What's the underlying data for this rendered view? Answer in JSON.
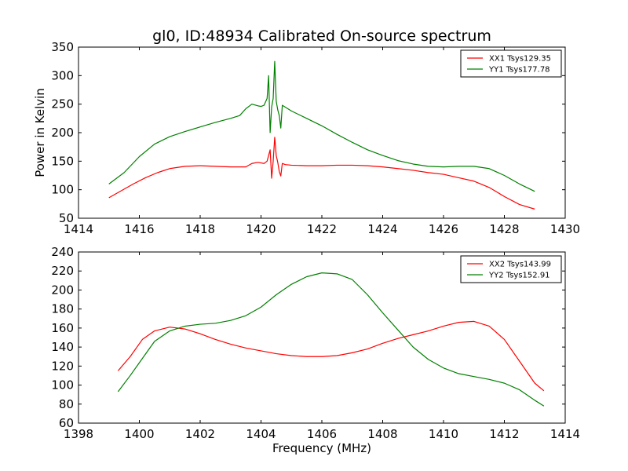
{
  "chart_data": [
    {
      "type": "line",
      "title": "gl0, ID:48934 Calibrated On-source spectrum",
      "xlabel": "",
      "ylabel": "Power in Kelvin",
      "xlim": [
        1414,
        1430
      ],
      "ylim": [
        50,
        350
      ],
      "xticks": [
        1414,
        1416,
        1418,
        1420,
        1422,
        1424,
        1426,
        1428,
        1430
      ],
      "yticks": [
        50,
        100,
        150,
        200,
        250,
        300,
        350
      ],
      "grid": false,
      "legend": "top-right",
      "series": [
        {
          "name": "XX1 Tsys129.35",
          "color": "#ff0000",
          "points": [
            [
              1415.0,
              86
            ],
            [
              1415.4,
              98
            ],
            [
              1415.8,
              110
            ],
            [
              1416.2,
              121
            ],
            [
              1416.6,
              130
            ],
            [
              1417.0,
              137
            ],
            [
              1417.5,
              141
            ],
            [
              1418.0,
              142
            ],
            [
              1418.5,
              141
            ],
            [
              1419.0,
              140
            ],
            [
              1419.5,
              140
            ],
            [
              1419.7,
              146
            ],
            [
              1419.9,
              148
            ],
            [
              1420.1,
              146
            ],
            [
              1420.2,
              150
            ],
            [
              1420.25,
              160
            ],
            [
              1420.3,
              170
            ],
            [
              1420.35,
              120
            ],
            [
              1420.4,
              150
            ],
            [
              1420.45,
              192
            ],
            [
              1420.5,
              160
            ],
            [
              1420.55,
              148
            ],
            [
              1420.6,
              132
            ],
            [
              1420.65,
              124
            ],
            [
              1420.7,
              146
            ],
            [
              1420.8,
              144
            ],
            [
              1421.0,
              143
            ],
            [
              1421.5,
              142
            ],
            [
              1422.0,
              142
            ],
            [
              1422.5,
              143
            ],
            [
              1423.0,
              143
            ],
            [
              1423.5,
              142
            ],
            [
              1424.0,
              140
            ],
            [
              1424.5,
              137
            ],
            [
              1425.0,
              134
            ],
            [
              1425.5,
              130
            ],
            [
              1426.0,
              127
            ],
            [
              1426.5,
              121
            ],
            [
              1427.0,
              115
            ],
            [
              1427.5,
              104
            ],
            [
              1428.0,
              88
            ],
            [
              1428.5,
              74
            ],
            [
              1429.0,
              66
            ]
          ]
        },
        {
          "name": "YY1 Tsys177.78",
          "color": "#008000",
          "points": [
            [
              1415.0,
              110
            ],
            [
              1415.5,
              130
            ],
            [
              1416.0,
              158
            ],
            [
              1416.5,
              180
            ],
            [
              1417.0,
              193
            ],
            [
              1417.5,
              202
            ],
            [
              1418.0,
              210
            ],
            [
              1418.5,
              218
            ],
            [
              1419.0,
              225
            ],
            [
              1419.3,
              230
            ],
            [
              1419.5,
              242
            ],
            [
              1419.7,
              250
            ],
            [
              1419.9,
              247
            ],
            [
              1420.0,
              246
            ],
            [
              1420.1,
              248
            ],
            [
              1420.2,
              260
            ],
            [
              1420.25,
              300
            ],
            [
              1420.3,
              200
            ],
            [
              1420.35,
              245
            ],
            [
              1420.4,
              260
            ],
            [
              1420.45,
              325
            ],
            [
              1420.5,
              255
            ],
            [
              1420.55,
              240
            ],
            [
              1420.6,
              230
            ],
            [
              1420.65,
              208
            ],
            [
              1420.7,
              248
            ],
            [
              1421.0,
              238
            ],
            [
              1421.5,
              225
            ],
            [
              1422.0,
              212
            ],
            [
              1422.5,
              197
            ],
            [
              1423.0,
              183
            ],
            [
              1423.5,
              170
            ],
            [
              1424.0,
              160
            ],
            [
              1424.5,
              151
            ],
            [
              1425.0,
              145
            ],
            [
              1425.5,
              141
            ],
            [
              1426.0,
              140
            ],
            [
              1426.5,
              141
            ],
            [
              1427.0,
              141
            ],
            [
              1427.5,
              137
            ],
            [
              1428.0,
              125
            ],
            [
              1428.5,
              110
            ],
            [
              1429.0,
              97
            ]
          ]
        }
      ]
    },
    {
      "type": "line",
      "title": "",
      "xlabel": "Frequency (MHz)",
      "ylabel": "",
      "xlim": [
        1398,
        1414
      ],
      "ylim": [
        60,
        240
      ],
      "xticks": [
        1398,
        1400,
        1402,
        1404,
        1406,
        1408,
        1410,
        1412,
        1414
      ],
      "yticks": [
        60,
        80,
        100,
        120,
        140,
        160,
        180,
        200,
        220,
        240
      ],
      "grid": false,
      "legend": "top-right",
      "series": [
        {
          "name": "XX2 Tsys143.99",
          "color": "#ff0000",
          "points": [
            [
              1399.3,
              115
            ],
            [
              1399.7,
              130
            ],
            [
              1400.1,
              148
            ],
            [
              1400.5,
              157
            ],
            [
              1401.0,
              161
            ],
            [
              1401.5,
              159
            ],
            [
              1402.0,
              154
            ],
            [
              1402.5,
              148
            ],
            [
              1403.0,
              143
            ],
            [
              1403.5,
              139
            ],
            [
              1404.0,
              136
            ],
            [
              1404.5,
              133
            ],
            [
              1405.0,
              131
            ],
            [
              1405.5,
              130
            ],
            [
              1406.0,
              130
            ],
            [
              1406.5,
              131
            ],
            [
              1407.0,
              134
            ],
            [
              1407.5,
              138
            ],
            [
              1408.0,
              144
            ],
            [
              1408.5,
              149
            ],
            [
              1409.0,
              153
            ],
            [
              1409.5,
              157
            ],
            [
              1410.0,
              162
            ],
            [
              1410.5,
              166
            ],
            [
              1411.0,
              167
            ],
            [
              1411.5,
              162
            ],
            [
              1412.0,
              148
            ],
            [
              1412.5,
              125
            ],
            [
              1413.0,
              102
            ],
            [
              1413.3,
              94
            ]
          ]
        },
        {
          "name": "YY2 Tsys152.91",
          "color": "#008000",
          "points": [
            [
              1399.3,
              93
            ],
            [
              1399.7,
              110
            ],
            [
              1400.1,
              128
            ],
            [
              1400.5,
              146
            ],
            [
              1401.0,
              157
            ],
            [
              1401.5,
              162
            ],
            [
              1402.0,
              164
            ],
            [
              1402.5,
              165
            ],
            [
              1403.0,
              168
            ],
            [
              1403.5,
              173
            ],
            [
              1404.0,
              182
            ],
            [
              1404.5,
              195
            ],
            [
              1405.0,
              206
            ],
            [
              1405.5,
              214
            ],
            [
              1406.0,
              218
            ],
            [
              1406.5,
              217
            ],
            [
              1407.0,
              211
            ],
            [
              1407.5,
              195
            ],
            [
              1408.0,
              176
            ],
            [
              1408.5,
              158
            ],
            [
              1409.0,
              140
            ],
            [
              1409.5,
              127
            ],
            [
              1410.0,
              118
            ],
            [
              1410.5,
              112
            ],
            [
              1411.0,
              109
            ],
            [
              1411.5,
              106
            ],
            [
              1412.0,
              102
            ],
            [
              1412.5,
              95
            ],
            [
              1413.0,
              84
            ],
            [
              1413.3,
              78
            ]
          ]
        }
      ]
    }
  ]
}
